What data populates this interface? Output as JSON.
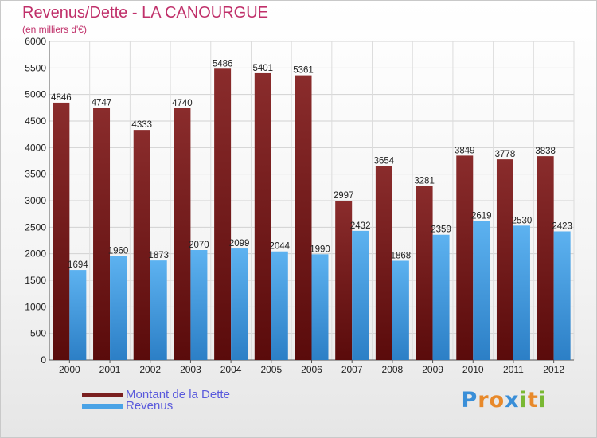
{
  "header": {
    "title": "Revenus/Dette - LA CANOURGUE",
    "subtitle": "(en milliers d'€)"
  },
  "colors": {
    "debt": "#7a1f1f",
    "revenue": "#4aa3e6",
    "title": "#c0306a",
    "legend_text": "#5a5adc"
  },
  "chart_data": {
    "type": "bar",
    "title": "Revenus/Dette - LA CANOURGUE",
    "subtitle": "(en milliers d'€)",
    "categories": [
      "2000",
      "2001",
      "2002",
      "2003",
      "2004",
      "2005",
      "2006",
      "2007",
      "2008",
      "2009",
      "2010",
      "2011",
      "2012"
    ],
    "series": [
      {
        "name": "Montant de la Dette",
        "values": [
          4846,
          4747,
          4333,
          4740,
          5486,
          5401,
          5361,
          2997,
          3654,
          3281,
          3849,
          3778,
          3838
        ]
      },
      {
        "name": "Revenus",
        "values": [
          1694,
          1960,
          1873,
          2070,
          2099,
          2044,
          1990,
          2432,
          1868,
          2359,
          2619,
          2530,
          2423
        ]
      }
    ],
    "ylim": [
      0,
      6000
    ],
    "yticks": [
      0,
      500,
      1000,
      1500,
      2000,
      2500,
      3000,
      3500,
      4000,
      4500,
      5000,
      5500,
      6000
    ],
    "grid": true,
    "legend_position": "bottom-left"
  },
  "legend": {
    "items": [
      {
        "label": "Montant de la Dette"
      },
      {
        "label": "Revenus"
      }
    ]
  },
  "brand": {
    "letters": [
      "P",
      "r",
      "o",
      "x",
      "i",
      "t",
      "i"
    ],
    "letter_colors": [
      "#3a8fd8",
      "#e8892a",
      "#e8892a",
      "#3a8fd8",
      "#79b833",
      "#e8892a",
      "#79b833"
    ]
  }
}
